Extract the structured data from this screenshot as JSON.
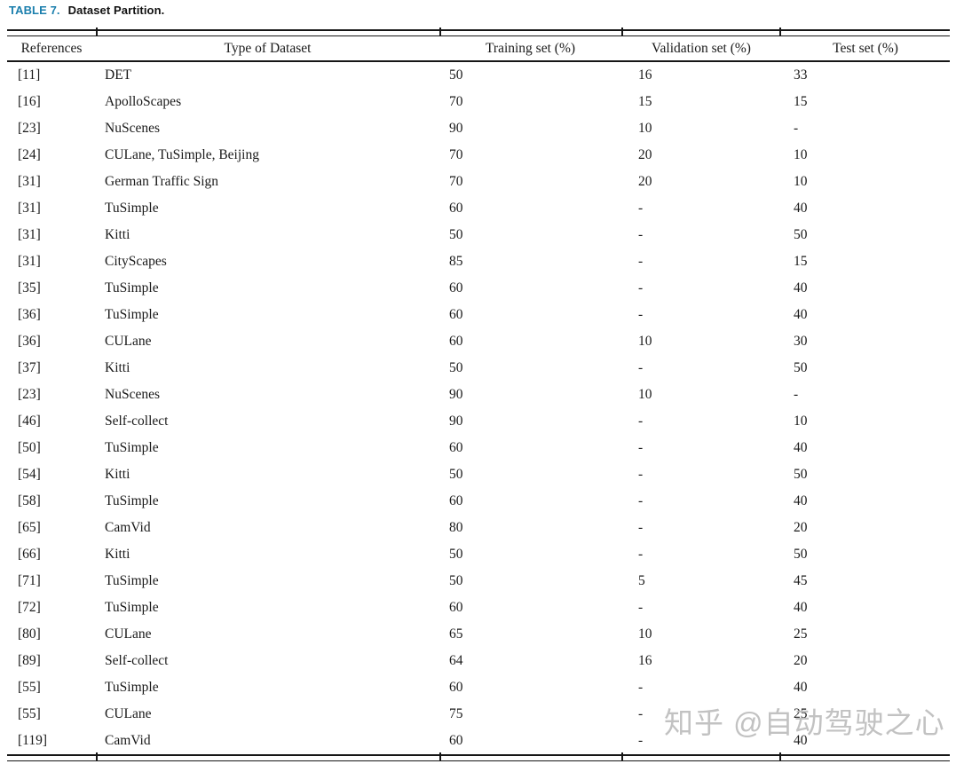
{
  "caption": {
    "label": "TABLE 7.",
    "title": "Dataset Partition."
  },
  "table": {
    "columns": [
      "References",
      "Type of Dataset",
      "Training set (%)",
      "Validation set (%)",
      "Test set (%)"
    ],
    "rows": [
      [
        "[11]",
        "DET",
        "50",
        "16",
        "33"
      ],
      [
        "[16]",
        "ApolloScapes",
        "70",
        "15",
        "15"
      ],
      [
        "[23]",
        "NuScenes",
        "90",
        "10",
        "-"
      ],
      [
        "[24]",
        "CULane, TuSimple, Beijing",
        "70",
        "20",
        "10"
      ],
      [
        "[31]",
        "German Traffic Sign",
        "70",
        "20",
        "10"
      ],
      [
        "[31]",
        "TuSimple",
        "60",
        "-",
        "40"
      ],
      [
        "[31]",
        "Kitti",
        "50",
        "-",
        "50"
      ],
      [
        "[31]",
        "CityScapes",
        "85",
        "-",
        "15"
      ],
      [
        "[35]",
        "TuSimple",
        "60",
        "-",
        "40"
      ],
      [
        "[36]",
        "TuSimple",
        "60",
        "-",
        "40"
      ],
      [
        "[36]",
        "CULane",
        "60",
        "10",
        "30"
      ],
      [
        "[37]",
        "Kitti",
        "50",
        "-",
        "50"
      ],
      [
        "[23]",
        "NuScenes",
        "90",
        "10",
        "-"
      ],
      [
        "[46]",
        "Self-collect",
        "90",
        "-",
        "10"
      ],
      [
        "[50]",
        "TuSimple",
        "60",
        "-",
        "40"
      ],
      [
        "[54]",
        "Kitti",
        "50",
        "-",
        "50"
      ],
      [
        "[58]",
        "TuSimple",
        "60",
        "-",
        "40"
      ],
      [
        "[65]",
        "CamVid",
        "80",
        "-",
        "20"
      ],
      [
        "[66]",
        "Kitti",
        "50",
        "-",
        "50"
      ],
      [
        "[71]",
        "TuSimple",
        "50",
        "5",
        "45"
      ],
      [
        "[72]",
        "TuSimple",
        "60",
        "-",
        "40"
      ],
      [
        "[80]",
        "CULane",
        "65",
        "10",
        "25"
      ],
      [
        "[89]",
        "Self-collect",
        "64",
        "16",
        "20"
      ],
      [
        "[55]",
        "TuSimple",
        "60",
        "-",
        "40"
      ],
      [
        "[55]",
        "CULane",
        "75",
        "-",
        "25"
      ],
      [
        "[119]",
        "CamVid",
        "60",
        "-",
        "40"
      ]
    ]
  },
  "watermark": {
    "text": "知乎 @自动驾驶之心"
  },
  "colors": {
    "caption_accent": "#1b7fad",
    "text": "#1a1a1a",
    "rule": "#161616",
    "watermark": "#bcbcbc"
  }
}
